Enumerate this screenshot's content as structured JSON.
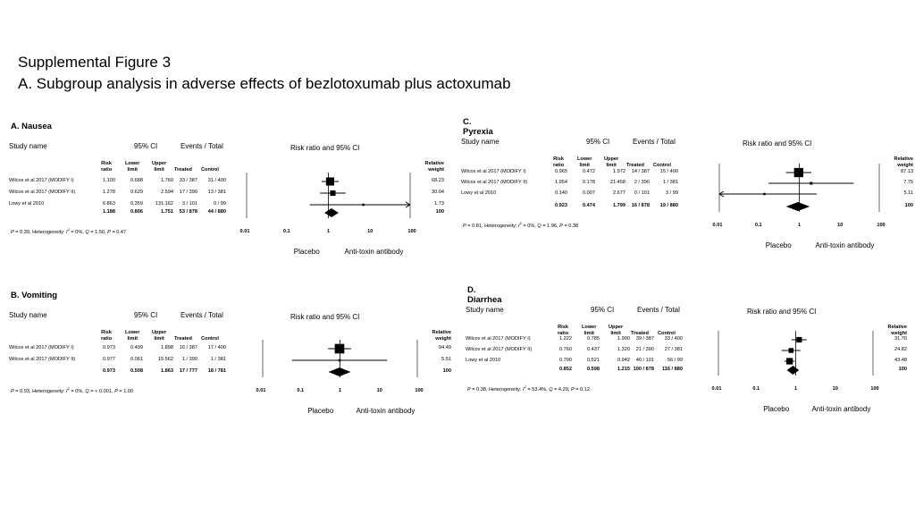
{
  "title_line1": "Supplemental Figure 3",
  "title_line2": "A. Subgroup analysis in adverse effects of bezlotoxumab plus actoxumab",
  "common": {
    "study_name": "Study name",
    "ci_header": "95% CI",
    "events_header": "Events / Total",
    "plot_header": "Risk ratio and 95% CI",
    "col_rr_1": "Risk",
    "col_rr_2": "ratio",
    "col_ll_1": "Lower",
    "col_ll_2": "limit",
    "col_ul_1": "Upper",
    "col_ul_2": "limit",
    "col_treated": "Treated",
    "col_control": "Control",
    "col_weight_1": "Relative",
    "col_weight_2": "weight",
    "left_label": "Placebo",
    "right_label": "Anti-toxin antibody",
    "axis_ticks": [
      "0.01",
      "0.1",
      "1",
      "10",
      "100"
    ]
  },
  "chart_data": [
    {
      "type": "forest",
      "title": "A. Nausea",
      "xscale": "log",
      "xlim": [
        0.01,
        100
      ],
      "studies": [
        {
          "name": "Wilcox et al 2017 (MODIFY I)",
          "rr": 1.1,
          "ll": 0.688,
          "ul": 1.76,
          "treated": "33 / 387",
          "control": "31 / 400",
          "weight": 68.23
        },
        {
          "name": "Wilcox et al 2017 (MODIFY II)",
          "rr": 1.278,
          "ll": 0.629,
          "ul": 2.594,
          "treated": "17 / 390",
          "control": "13 / 381",
          "weight": 30.04
        },
        {
          "name": "Lowy et al 2010",
          "rr": 6.863,
          "ll": 0.359,
          "ul": 131.162,
          "treated": "3 / 101",
          "control": "0 / 99",
          "weight": 1.73
        }
      ],
      "summary": {
        "rr": 1.188,
        "ll": 0.806,
        "ul": 1.751,
        "treated": "53 / 878",
        "control": "44 / 880",
        "weight": 100
      },
      "heterogeneity": {
        "p_overall": "0.39",
        "i2": "0%",
        "q": "1.50",
        "p_het": "0.47"
      }
    },
    {
      "type": "forest",
      "title": "B. Vomiting",
      "xscale": "log",
      "xlim": [
        0.01,
        100
      ],
      "studies": [
        {
          "name": "Wilcox et al 2017 (MODIFY I)",
          "rr": 0.973,
          "ll": 0.499,
          "ul": 1.898,
          "treated": "16 / 387",
          "control": "17 / 400",
          "weight": 94.49
        },
        {
          "name": "Wilcox et al 2017 (MODIFY II)",
          "rr": 0.977,
          "ll": 0.061,
          "ul": 15.562,
          "treated": "1 / 390",
          "control": "1 / 381",
          "weight": 5.51
        }
      ],
      "summary": {
        "rr": 0.973,
        "ll": 0.508,
        "ul": 1.863,
        "treated": "17 / 777",
        "control": "18 / 781",
        "weight": 100
      },
      "heterogeneity": {
        "p_overall": "0.93",
        "i2": "0%",
        "q": "< 0.001",
        "p_het": "1.00"
      }
    },
    {
      "type": "forest",
      "title": "C. Pyrexia",
      "xscale": "log",
      "xlim": [
        0.01,
        100
      ],
      "studies": [
        {
          "name": "Wilcox et al 2017 (MODIFY I)",
          "rr": 0.965,
          "ll": 0.472,
          "ul": 1.972,
          "treated": "14 / 387",
          "control": "15 / 400",
          "weight": 87.13
        },
        {
          "name": "Wilcox et al 2017 (MODIFY II)",
          "rr": 1.954,
          "ll": 0.178,
          "ul": 21.458,
          "treated": "2 / 390",
          "control": "1 / 381",
          "weight": 7.75
        },
        {
          "name": "Lowy et al 2010",
          "rr": 0.14,
          "ll": 0.007,
          "ul": 2.677,
          "treated": "0 / 101",
          "control": "3 / 99",
          "weight": 5.11
        }
      ],
      "summary": {
        "rr": 0.923,
        "ll": 0.474,
        "ul": 1.799,
        "treated": "16 / 878",
        "control": "19 / 880",
        "weight": 100
      },
      "heterogeneity": {
        "p_overall": "0.81",
        "i2": "0%",
        "q": "1.96",
        "p_het": "0.38"
      }
    },
    {
      "type": "forest",
      "title": "D. Diarrhea",
      "xscale": "log",
      "xlim": [
        0.01,
        100
      ],
      "studies": [
        {
          "name": "Wilcox et al 2017 (MODIFY I)",
          "rr": 1.222,
          "ll": 0.785,
          "ul": 1.9,
          "treated": "39 / 387",
          "control": "33 / 400",
          "weight": 31.7
        },
        {
          "name": "Wilcox et al 2017 (MODIFY II)",
          "rr": 0.76,
          "ll": 0.437,
          "ul": 1.32,
          "treated": "21 / 390",
          "control": "27 / 381",
          "weight": 24.82
        },
        {
          "name": "Lowy et al 2010",
          "rr": 0.7,
          "ll": 0.521,
          "ul": 0.942,
          "treated": "40 / 101",
          "control": "56 / 99",
          "weight": 43.48
        }
      ],
      "summary": {
        "rr": 0.852,
        "ll": 0.598,
        "ul": 1.215,
        "treated": "100 / 878",
        "control": "116 / 880",
        "weight": 100
      },
      "heterogeneity": {
        "p_overall": "0.38",
        "i2": "53.4%",
        "q": "4.29",
        "p_het": "0.12"
      }
    }
  ]
}
